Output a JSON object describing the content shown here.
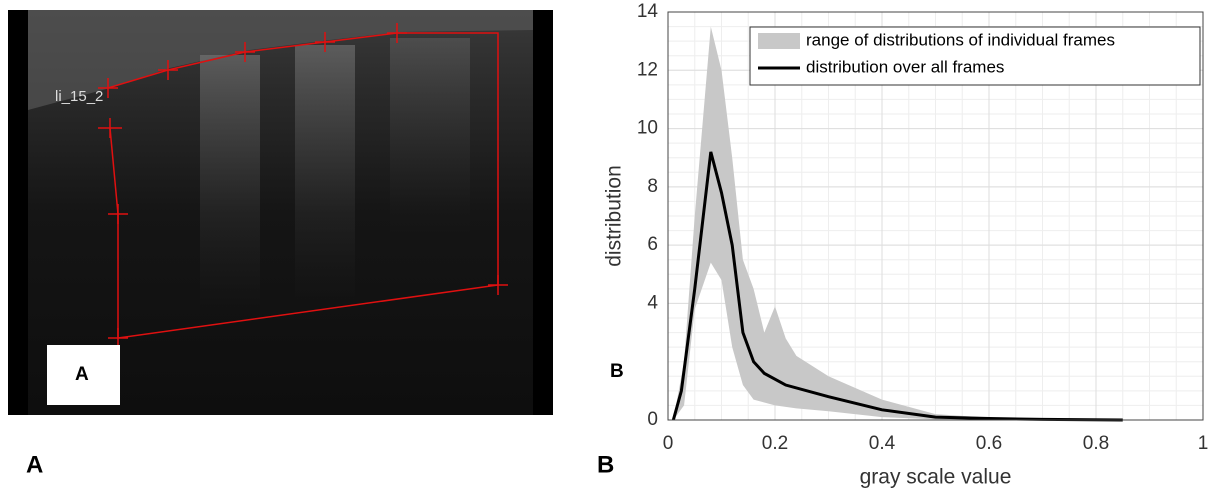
{
  "figure": {
    "panel_a": {
      "roi_label": "li_15_2",
      "inset_label": "A",
      "caption_label": "A"
    },
    "panel_b": {
      "inset_label": "B",
      "caption_label": "B"
    }
  },
  "chart_data": {
    "type": "band_line",
    "xlabel": "gray scale value",
    "ylabel": "distribution",
    "xlim": [
      0,
      1
    ],
    "ylim": [
      0,
      14
    ],
    "xticks": [
      0,
      0.2,
      0.4,
      0.6,
      0.8,
      1
    ],
    "yticks": [
      0,
      4,
      6,
      8,
      10,
      12,
      14
    ],
    "grid": true,
    "minor_grid": true,
    "legend": "upper right",
    "band": {
      "name": "range of distributions of individual frames",
      "color": "#c8c8c8",
      "x": [
        0.01,
        0.03,
        0.05,
        0.08,
        0.1,
        0.12,
        0.14,
        0.16,
        0.18,
        0.2,
        0.22,
        0.24,
        0.3,
        0.4,
        0.5,
        0.6,
        0.85
      ],
      "lower": [
        0,
        0.5,
        3.8,
        5.4,
        4.8,
        2.5,
        1.2,
        0.7,
        0.6,
        0.5,
        0.45,
        0.4,
        0.3,
        0.1,
        0.02,
        0,
        0
      ],
      "upper": [
        0,
        2,
        7,
        13.5,
        12,
        9,
        5.5,
        4.5,
        3,
        3.9,
        2.8,
        2.2,
        1.5,
        0.7,
        0.2,
        0.08,
        0.02
      ]
    },
    "line": {
      "name": "distribution over all frames",
      "color": "#000000",
      "x": [
        0.01,
        0.025,
        0.05,
        0.08,
        0.1,
        0.12,
        0.14,
        0.16,
        0.18,
        0.2,
        0.22,
        0.3,
        0.4,
        0.5,
        0.6,
        0.7,
        0.85
      ],
      "values": [
        0,
        1,
        4.5,
        9.2,
        7.8,
        6,
        3,
        2,
        1.6,
        1.4,
        1.2,
        0.8,
        0.35,
        0.1,
        0.05,
        0.02,
        0
      ]
    }
  }
}
